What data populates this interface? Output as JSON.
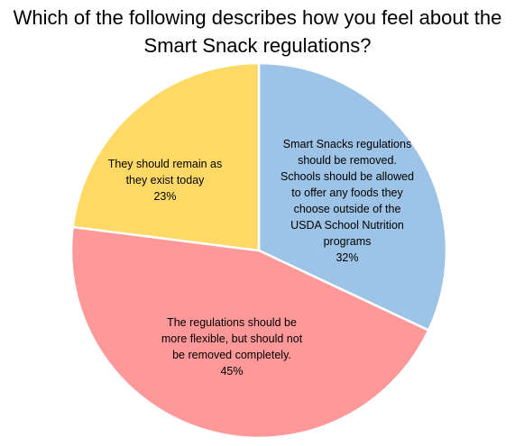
{
  "chart_data": {
    "type": "pie",
    "title_lines": [
      "Which of the following describes how you feel about the",
      "Smart Snack regulations?"
    ],
    "slices": [
      {
        "label_lines": [
          "Smart Snacks regulations",
          "should be removed.",
          "Schools should be allowed",
          "to offer any foods they",
          "choose outside of the",
          "USDA School Nutrition",
          "programs"
        ],
        "percent_label": "32%",
        "value": 32,
        "color": "#9DC3E6"
      },
      {
        "label_lines": [
          "The regulations should be",
          "more flexible, but should not",
          "be removed completely."
        ],
        "percent_label": "45%",
        "value": 45,
        "color": "#FF9999"
      },
      {
        "label_lines": [
          "They should remain as",
          "they exist today"
        ],
        "percent_label": "23%",
        "value": 23,
        "color": "#FFD966"
      }
    ]
  }
}
